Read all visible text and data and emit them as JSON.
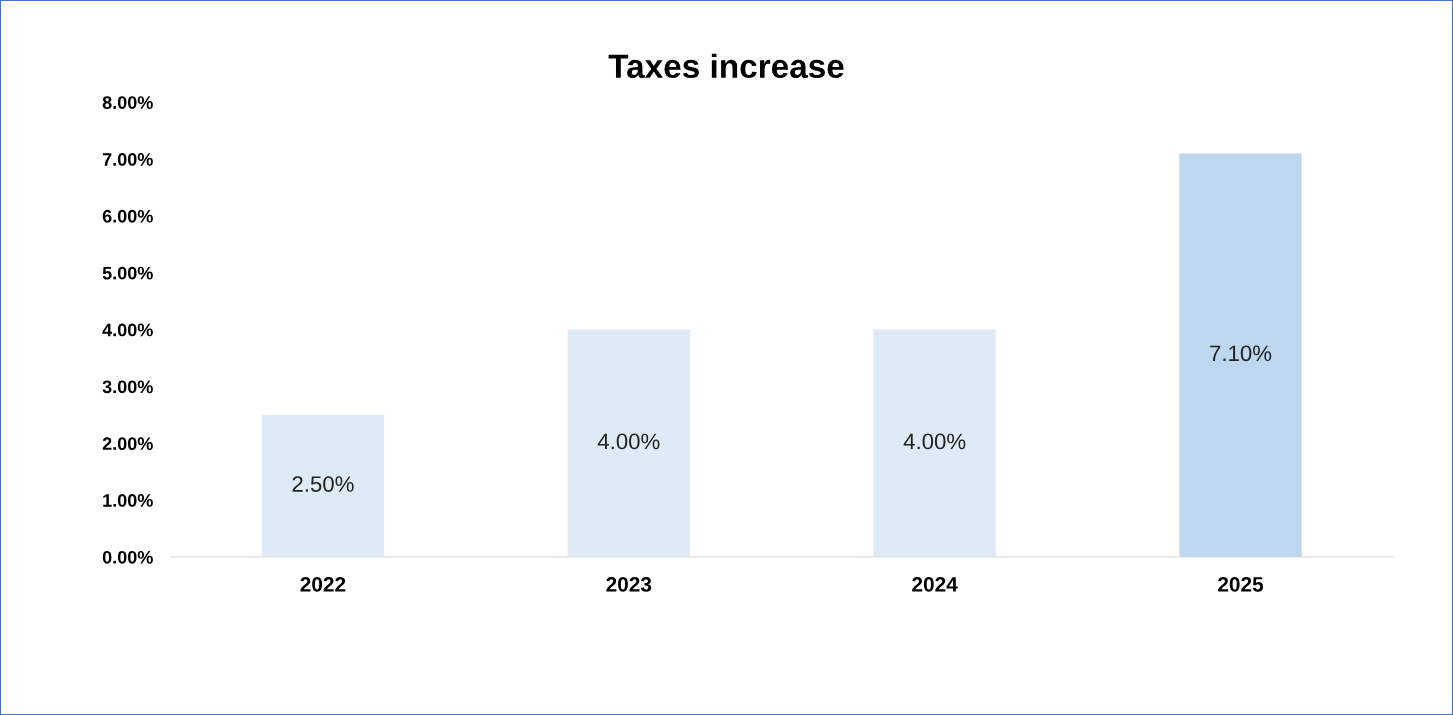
{
  "chart_data": {
    "type": "bar",
    "title": "Taxes increase",
    "categories": [
      "2022",
      "2023",
      "2024",
      "2025"
    ],
    "values": [
      2.5,
      4.0,
      4.0,
      7.1
    ],
    "colors": [
      "#deeaf6",
      "#deeaf6",
      "#deeaf6",
      "#bdd7ee"
    ],
    "value_labels": [
      "2.50%",
      "4.00%",
      "4.00%",
      "7.10%"
    ],
    "ylim": [
      0,
      8
    ],
    "yticks": [
      {
        "value": 0,
        "label": "0.00%"
      },
      {
        "value": 1,
        "label": "1.00%"
      },
      {
        "value": 2,
        "label": "2.00%"
      },
      {
        "value": 3,
        "label": "3.00%"
      },
      {
        "value": 4,
        "label": "4.00%"
      },
      {
        "value": 5,
        "label": "5.00%"
      },
      {
        "value": 6,
        "label": "6.00%"
      },
      {
        "value": 7,
        "label": "7.00%"
      },
      {
        "value": 8,
        "label": "8.00%"
      }
    ],
    "grid": false
  }
}
